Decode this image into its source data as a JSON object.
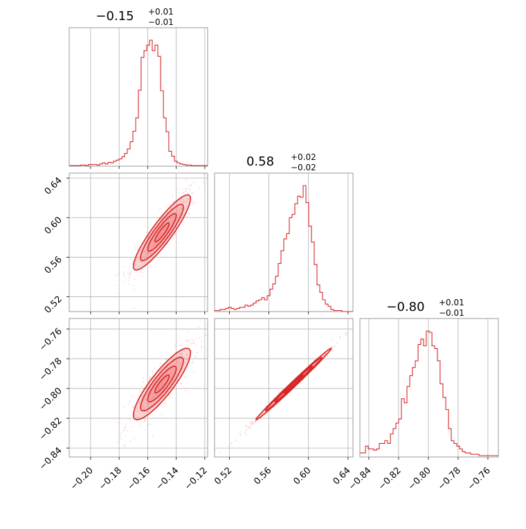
{
  "colors": {
    "accent": "#d62728",
    "fill": "#f08080",
    "grid": "#b0b0b0",
    "axis": "#808080"
  },
  "chart_data": {
    "type": "corner",
    "params": [
      {
        "title": "−0.15",
        "plus": "+0.01",
        "minus": "−0.01",
        "range": [
          -0.215,
          -0.118
        ],
        "ticks": [
          -0.2,
          -0.18,
          -0.16,
          -0.14,
          -0.12
        ],
        "tick_labels": [
          "−0.20",
          "−0.18",
          "−0.16",
          "−0.14",
          "−0.12"
        ]
      },
      {
        "title": "0.58",
        "plus": "+0.02",
        "minus": "−0.02",
        "range": [
          0.505,
          0.645
        ],
        "ticks": [
          0.52,
          0.56,
          0.6,
          0.64
        ],
        "tick_labels": [
          "0.52",
          "0.56",
          "0.60",
          "0.64"
        ]
      },
      {
        "title": "−0.80",
        "plus": "+0.01",
        "minus": "−0.01",
        "range": [
          -0.846,
          -0.753
        ],
        "ticks": [
          -0.84,
          -0.82,
          -0.8,
          -0.78,
          -0.76
        ],
        "tick_labels": [
          "−0.84",
          "−0.82",
          "−0.80",
          "−0.78",
          "−0.76"
        ]
      }
    ],
    "histograms": [
      {
        "param": 0,
        "bins": [
          -0.215,
          -0.2131,
          -0.2111,
          -0.2092,
          -0.2072,
          -0.2053,
          -0.2034,
          -0.2014,
          -0.1995,
          -0.1975,
          -0.1956,
          -0.1937,
          -0.1917,
          -0.1898,
          -0.1878,
          -0.1859,
          -0.184,
          -0.182,
          -0.1801,
          -0.1781,
          -0.1762,
          -0.1743,
          -0.1723,
          -0.1704,
          -0.1684,
          -0.1665,
          -0.1646,
          -0.1626,
          -0.1607,
          -0.1587,
          -0.1568,
          -0.1549,
          -0.1529,
          -0.151,
          -0.149,
          -0.1471,
          -0.1452,
          -0.1432,
          -0.1413,
          -0.1393,
          -0.1374,
          -0.1355,
          -0.1335,
          -0.1316,
          -0.1296,
          -0.1277,
          -0.1258,
          -0.1238,
          -0.1219,
          -0.1199,
          -0.118
        ],
        "counts": [
          1,
          1,
          1,
          1,
          2,
          2,
          1,
          3,
          3,
          3,
          2,
          4,
          6,
          4,
          7,
          6,
          9,
          11,
          13,
          17,
          23,
          31,
          44,
          63,
          87,
          137,
          196,
          208,
          218,
          227,
          208,
          218,
          198,
          136,
          87,
          62,
          27,
          18,
          9,
          6,
          4,
          3,
          2,
          2,
          1,
          1,
          1,
          1,
          1,
          1
        ]
      },
      {
        "param": 1,
        "bins": [
          0.505,
          0.5078,
          0.5106,
          0.5134,
          0.5162,
          0.519,
          0.5218,
          0.5246,
          0.5274,
          0.5302,
          0.533,
          0.5358,
          0.5386,
          0.5414,
          0.5442,
          0.547,
          0.5498,
          0.5526,
          0.5554,
          0.5582,
          0.561,
          0.5638,
          0.5666,
          0.5694,
          0.5722,
          0.575,
          0.5778,
          0.5806,
          0.5834,
          0.5862,
          0.589,
          0.5918,
          0.5946,
          0.5974,
          0.6002,
          0.603,
          0.6058,
          0.6086,
          0.6114,
          0.6142,
          0.617,
          0.6198,
          0.6226,
          0.6254,
          0.6282,
          0.631,
          0.6338,
          0.6366,
          0.6394,
          0.6422,
          0.645
        ],
        "counts": [
          1,
          1,
          2,
          2,
          3,
          4,
          3,
          2,
          3,
          4,
          4,
          6,
          5,
          6,
          8,
          10,
          11,
          13,
          11,
          15,
          21,
          26,
          33,
          45,
          57,
          68,
          73,
          88,
          91,
          101,
          108,
          107,
          118,
          102,
          80,
          65,
          44,
          25,
          18,
          11,
          7,
          5,
          2,
          1,
          1,
          1,
          0,
          0,
          0,
          0
        ]
      },
      {
        "param": 2,
        "bins": [
          -0.846,
          -0.8441,
          -0.8423,
          -0.8404,
          -0.8386,
          -0.8367,
          -0.8348,
          -0.833,
          -0.8311,
          -0.8293,
          -0.8274,
          -0.8255,
          -0.8237,
          -0.8218,
          -0.82,
          -0.8181,
          -0.8162,
          -0.8144,
          -0.8125,
          -0.8107,
          -0.8088,
          -0.8069,
          -0.8051,
          -0.8032,
          -0.8014,
          -0.7995,
          -0.7976,
          -0.7958,
          -0.7939,
          -0.7921,
          -0.7902,
          -0.7883,
          -0.7865,
          -0.7846,
          -0.7828,
          -0.7809,
          -0.779,
          -0.7772,
          -0.7753,
          -0.7735,
          -0.7716,
          -0.7697,
          -0.7679,
          -0.766,
          -0.7642,
          -0.7623,
          -0.7604,
          -0.7586,
          -0.7567,
          -0.7549,
          -0.753
        ],
        "counts": [
          3,
          3,
          8,
          6,
          6,
          5,
          6,
          10,
          10,
          12,
          10,
          17,
          21,
          25,
          28,
          43,
          40,
          52,
          60,
          66,
          71,
          83,
          87,
          82,
          93,
          92,
          82,
          80,
          71,
          54,
          44,
          35,
          21,
          12,
          10,
          8,
          6,
          4,
          3,
          3,
          2,
          2,
          2,
          1,
          1,
          1,
          1,
          1,
          1,
          1
        ]
      }
    ],
    "scatter_panels": [
      {
        "x_param": 0,
        "y_param": 1,
        "mean": [
          -0.15,
          0.585
        ],
        "sd": [
          0.01,
          0.019
        ],
        "corr": 0.9
      },
      {
        "x_param": 0,
        "y_param": 2,
        "mean": [
          -0.15,
          -0.797
        ],
        "sd": [
          0.01,
          0.012
        ],
        "corr": 0.87
      },
      {
        "x_param": 1,
        "y_param": 2,
        "mean": [
          0.585,
          -0.797
        ],
        "sd": [
          0.019,
          0.012
        ],
        "corr": 0.995
      }
    ]
  }
}
